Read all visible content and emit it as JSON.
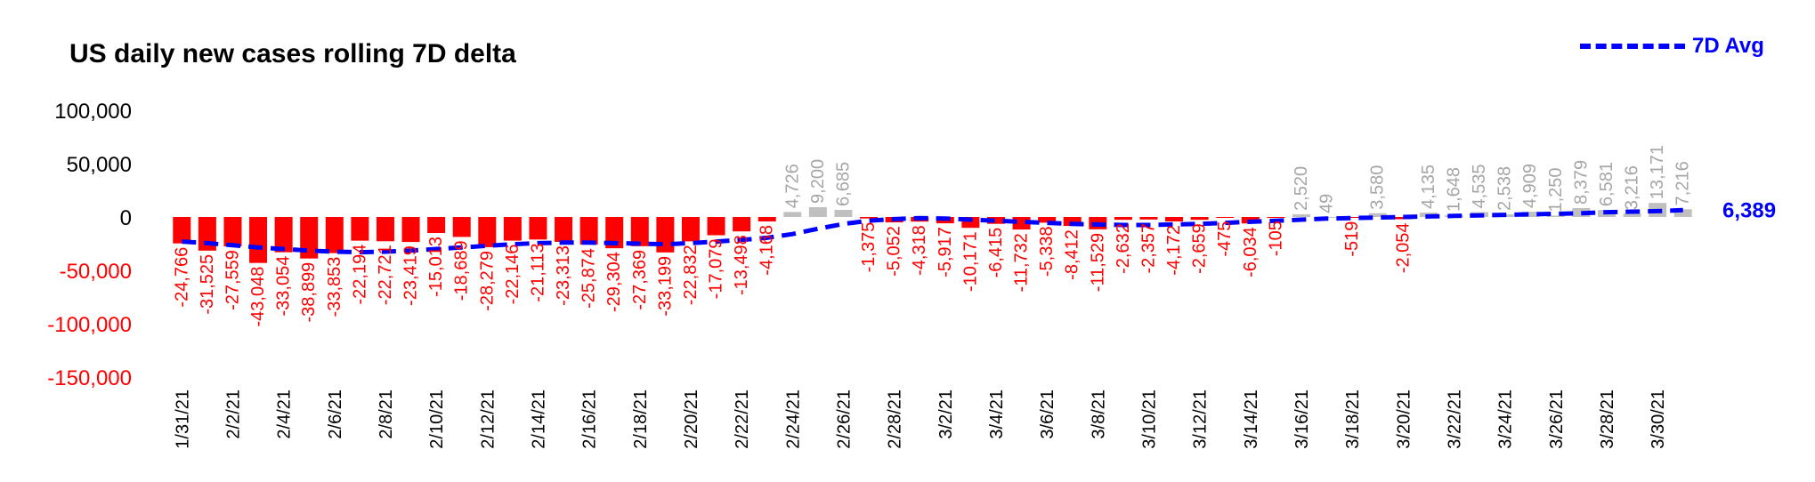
{
  "chart_data": {
    "type": "bar",
    "title": "US daily new cases rolling 7D delta",
    "xlabel": "",
    "ylabel": "",
    "ylim": [
      -150000,
      100000
    ],
    "y_ticks": [
      {
        "label": "100,000",
        "value": 100000
      },
      {
        "label": "50,000",
        "value": 50000
      },
      {
        "label": "0",
        "value": 0
      },
      {
        "label": "-50,000",
        "value": -50000
      },
      {
        "label": "-100,000",
        "value": -100000
      },
      {
        "label": "-150,000",
        "value": -150000
      }
    ],
    "x_tick_labels": [
      "1/31/21",
      "2/2/21",
      "2/4/21",
      "2/6/21",
      "2/8/21",
      "2/10/21",
      "2/12/21",
      "2/14/21",
      "2/16/21",
      "2/18/21",
      "2/20/21",
      "2/22/21",
      "2/24/21",
      "2/26/21",
      "2/28/21",
      "3/2/21",
      "3/4/21",
      "3/6/21",
      "3/8/21",
      "3/10/21",
      "3/12/21",
      "3/14/21",
      "3/16/21",
      "3/18/21",
      "3/20/21",
      "3/22/21",
      "3/24/21",
      "3/26/21",
      "3/28/21",
      "3/30/21"
    ],
    "grid": false,
    "legend_position": "top-right",
    "colors": {
      "negative": "#ff0000",
      "positive": "#c0c0c0",
      "avg_line": "#0000ff",
      "negative_labels": "#ff0000",
      "positive_labels": "#a6a6a6"
    },
    "bars": [
      {
        "value": -24766,
        "label": "-24,766"
      },
      {
        "value": -31525,
        "label": "-31,525"
      },
      {
        "value": -27559,
        "label": "-27,559"
      },
      {
        "value": -43048,
        "label": "-43,048"
      },
      {
        "value": -33054,
        "label": "-33,054"
      },
      {
        "value": -38899,
        "label": "-38,899"
      },
      {
        "value": -33853,
        "label": "-33,853"
      },
      {
        "value": -22194,
        "label": "-22,194"
      },
      {
        "value": -22721,
        "label": "-22,721"
      },
      {
        "value": -23419,
        "label": "-23,419"
      },
      {
        "value": -15013,
        "label": "-15,013"
      },
      {
        "value": -18689,
        "label": "-18,689"
      },
      {
        "value": -28279,
        "label": "-28,279"
      },
      {
        "value": -22146,
        "label": "-22,146"
      },
      {
        "value": -21113,
        "label": "-21,113"
      },
      {
        "value": -23313,
        "label": "-23,313"
      },
      {
        "value": -25874,
        "label": "-25,874"
      },
      {
        "value": -29304,
        "label": "-29,304"
      },
      {
        "value": -27369,
        "label": "-27,369"
      },
      {
        "value": -33199,
        "label": "-33,199"
      },
      {
        "value": -22832,
        "label": "-22,832"
      },
      {
        "value": -17079,
        "label": "-17,079"
      },
      {
        "value": -13498,
        "label": "-13,498"
      },
      {
        "value": -4168,
        "label": "-4,168"
      },
      {
        "value": 4726,
        "label": "4,726"
      },
      {
        "value": 9200,
        "label": "9,200"
      },
      {
        "value": 6685,
        "label": "6,685"
      },
      {
        "value": -1375,
        "label": "-1,375"
      },
      {
        "value": -5052,
        "label": "-5,052"
      },
      {
        "value": -4318,
        "label": "-4,318"
      },
      {
        "value": -5917,
        "label": "-5,917"
      },
      {
        "value": -10171,
        "label": "-10,171"
      },
      {
        "value": -6415,
        "label": "-6,415"
      },
      {
        "value": -11732,
        "label": "-11,732"
      },
      {
        "value": -5338,
        "label": "-5,338"
      },
      {
        "value": -8412,
        "label": "-8,412"
      },
      {
        "value": -11529,
        "label": "-11,529"
      },
      {
        "value": -2632,
        "label": "-2,632"
      },
      {
        "value": -2357,
        "label": "-2,357"
      },
      {
        "value": -4172,
        "label": "-4,172"
      },
      {
        "value": -2659,
        "label": "-2,659"
      },
      {
        "value": -475,
        "label": "-475"
      },
      {
        "value": -6034,
        "label": "-6,034"
      },
      {
        "value": -105,
        "label": "-105"
      },
      {
        "value": 2520,
        "label": "2,520"
      },
      {
        "value": 49,
        "label": "49"
      },
      {
        "value": -519,
        "label": "-519"
      },
      {
        "value": 3580,
        "label": "3,580"
      },
      {
        "value": -2054,
        "label": "-2,054"
      },
      {
        "value": 4135,
        "label": "4,135"
      },
      {
        "value": 1648,
        "label": "1,648"
      },
      {
        "value": 4535,
        "label": "4,535"
      },
      {
        "value": 2538,
        "label": "2,538"
      },
      {
        "value": 4909,
        "label": "4,909"
      },
      {
        "value": 1250,
        "label": "1,250"
      },
      {
        "value": 8379,
        "label": "8,379"
      },
      {
        "value": 6581,
        "label": "6,581"
      },
      {
        "value": 3216,
        "label": "3,216"
      },
      {
        "value": 13171,
        "label": "13,171"
      },
      {
        "value": 7216,
        "label": "7,216"
      }
    ],
    "series": [
      {
        "name": "7D Avg",
        "style": "dashed",
        "values": [
          -23000,
          -24500,
          -26500,
          -28500,
          -30000,
          -31500,
          -32500,
          -33000,
          -32500,
          -31500,
          -30000,
          -28500,
          -27000,
          -25500,
          -24500,
          -24000,
          -24000,
          -24500,
          -25000,
          -25500,
          -24500,
          -23000,
          -21500,
          -19500,
          -16000,
          -11000,
          -6500,
          -3500,
          -2000,
          -1000,
          -1500,
          -2500,
          -3500,
          -4500,
          -5500,
          -6500,
          -7000,
          -7500,
          -7500,
          -7000,
          -6500,
          -5500,
          -4500,
          -3500,
          -2500,
          -1500,
          -1000,
          -500,
          0,
          500,
          1000,
          1500,
          2000,
          2500,
          3000,
          3500,
          4500,
          5000,
          5500,
          6389
        ]
      }
    ],
    "end_label": "6,389"
  }
}
